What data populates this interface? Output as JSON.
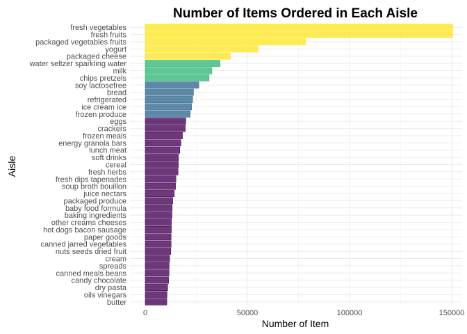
{
  "chart_data": {
    "type": "bar",
    "orientation": "horizontal",
    "title": "Number of Items Ordered in Each Aisle",
    "xlabel": "Number of Item",
    "ylabel": "Aisle",
    "xlim": [
      0,
      152000
    ],
    "x_ticks": [
      0,
      50000,
      100000,
      150000
    ],
    "x_tick_labels": [
      "0",
      "50000",
      "100000",
      "150000"
    ],
    "grid": true,
    "legend": "none",
    "categories": [
      "fresh vegetables",
      "fresh fruits",
      "packaged vegetables fruits",
      "yogurt",
      "packaged cheese",
      "water seltzer sparkling water",
      "milk",
      "chips pretzels",
      "soy lactosefree",
      "bread",
      "refrigerated",
      "ice cream ice",
      "frozen produce",
      "eggs",
      "crackers",
      "frozen meals",
      "energy granola bars",
      "lunch meat",
      "soft drinks",
      "cereal",
      "fresh herbs",
      "fresh dips tapenades",
      "soup broth bouillon",
      "juice nectars",
      "packaged produce",
      "baby food formula",
      "baking ingredients",
      "other creams cheeses",
      "hot dogs bacon sausage",
      "paper goods",
      "canned jarred vegetables",
      "nuts seeds dried fruit",
      "cream",
      "spreads",
      "canned meals beans",
      "candy chocolate",
      "dry pasta",
      "oils vinegars",
      "butter"
    ],
    "values": [
      150609,
      150473,
      78493,
      55240,
      41699,
      36617,
      32644,
      31269,
      26240,
      23635,
      23228,
      22676,
      22036,
      19875,
      19592,
      18221,
      17449,
      16957,
      16279,
      16201,
      16052,
      15044,
      14840,
      14215,
      13460,
      13198,
      13088,
      12820,
      12798,
      12656,
      12679,
      12532,
      11955,
      11726,
      11679,
      11453,
      10997,
      10667,
      10575
    ],
    "color_groups": [
      {
        "color": "#FDE725",
        "from": 0,
        "to": 4
      },
      {
        "color": "#35B779",
        "from": 5,
        "to": 7
      },
      {
        "color": "#31688E",
        "from": 8,
        "to": 12
      },
      {
        "color": "#440154",
        "from": 13,
        "to": 38
      }
    ]
  }
}
